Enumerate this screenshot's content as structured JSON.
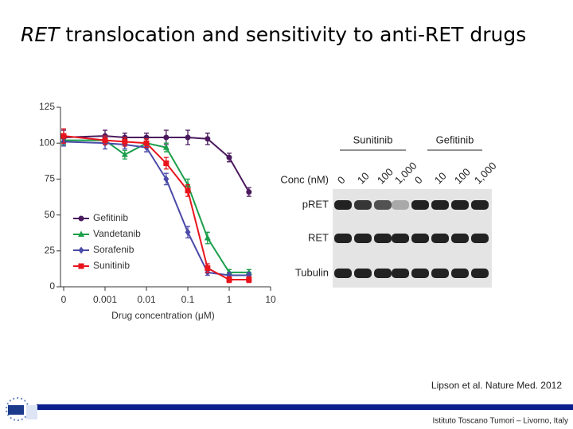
{
  "slide": {
    "title_italic": "RET",
    "title_rest": " translocation and sensitivity to anti-RET drugs",
    "citation": "Lipson et al. Nature Med. 2012",
    "footer": "Istituto Toscano Tumori – Livorno, Italy"
  },
  "chart_data": {
    "type": "line",
    "xlabel": "Drug concentration (μM)",
    "xscale": "log",
    "x": [
      0.0001,
      0.001,
      0.003,
      0.01,
      0.03,
      0.1,
      0.3,
      1,
      3
    ],
    "xlim": [
      0.0001,
      10
    ],
    "xticks": [
      {
        "value": 0.0001,
        "label": "0"
      },
      0.001,
      0.01,
      0.1,
      1,
      10
    ],
    "ylim": [
      0,
      125
    ],
    "yticks": [
      0,
      25,
      50,
      75,
      100,
      125
    ],
    "legend": "center left",
    "series": [
      {
        "name": "Gefitinib",
        "color": "#4b1a5e",
        "marker": "circle",
        "values": [
          104,
          105,
          104,
          104,
          104,
          104,
          103,
          90,
          66
        ],
        "errors": [
          5,
          4,
          3,
          3,
          5,
          5,
          4,
          3,
          3
        ]
      },
      {
        "name": "Vandetanib",
        "color": "#1a9e4a",
        "marker": "triangle",
        "values": [
          102,
          102,
          92,
          100,
          97,
          71,
          34,
          10,
          10
        ],
        "errors": [
          3,
          3,
          3,
          3,
          3,
          4,
          4,
          2,
          2
        ]
      },
      {
        "name": "Sorafenib",
        "color": "#4a4aa8",
        "marker": "diamond",
        "values": [
          101,
          100,
          99,
          97,
          75,
          38,
          10,
          8,
          8
        ],
        "errors": [
          3,
          4,
          3,
          3,
          4,
          4,
          2,
          2,
          2
        ]
      },
      {
        "name": "Sunitinib",
        "color": "#e8141c",
        "marker": "square",
        "values": [
          105,
          102,
          101,
          100,
          86,
          67,
          13,
          5,
          5
        ],
        "errors": [
          5,
          3,
          3,
          3,
          4,
          4,
          3,
          2,
          2
        ]
      }
    ]
  },
  "blot": {
    "groups": [
      "Sunitinib",
      "Gefitinib"
    ],
    "conc_label": "Conc (nM)",
    "lanes": [
      "0",
      "10",
      "100",
      "1,000",
      "0",
      "10",
      "100",
      "1,000"
    ],
    "rows": [
      "pRET",
      "RET",
      "Tubulin"
    ]
  }
}
